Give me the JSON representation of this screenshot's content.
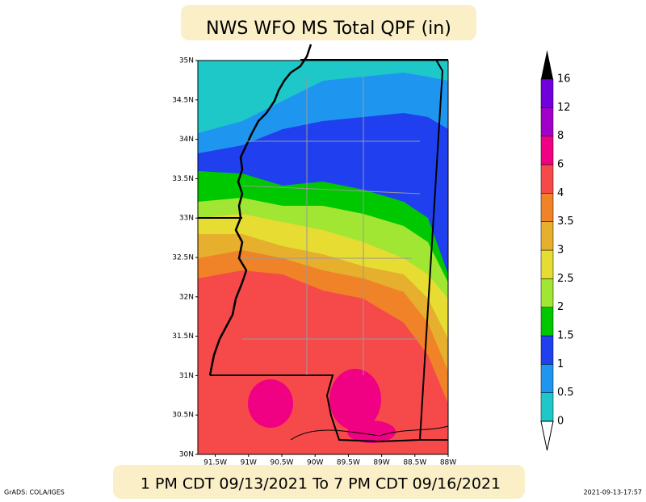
{
  "title": "NWS WFO MS Total QPF (in)",
  "period": "1 PM CDT 09/13/2021 To 7 PM CDT 09/16/2021",
  "credit": "GrADS: COLA/IGES",
  "timestamp": "2021-09-13-17:57",
  "map": {
    "lat_labels": [
      "35N",
      "34.5N",
      "34N",
      "33.5N",
      "33N",
      "32.5N",
      "32N",
      "31.5N",
      "31N",
      "30.5N",
      "30N"
    ],
    "lon_labels": [
      "91.5W",
      "91W",
      "90.5W",
      "90W",
      "89.5W",
      "89W",
      "88.5W",
      "88W"
    ]
  },
  "colorbar": {
    "levels": [
      0,
      0.5,
      1,
      1.5,
      2,
      2.5,
      3,
      3.5,
      4,
      6,
      8,
      12,
      16
    ],
    "colors": [
      "#1ec8c8",
      "#1e96f0",
      "#2040f0",
      "#00c800",
      "#a0e632",
      "#e6dc32",
      "#e6af2d",
      "#f08228",
      "#f64a4a",
      "#f00082",
      "#a000c8",
      "#7000dc"
    ]
  }
}
